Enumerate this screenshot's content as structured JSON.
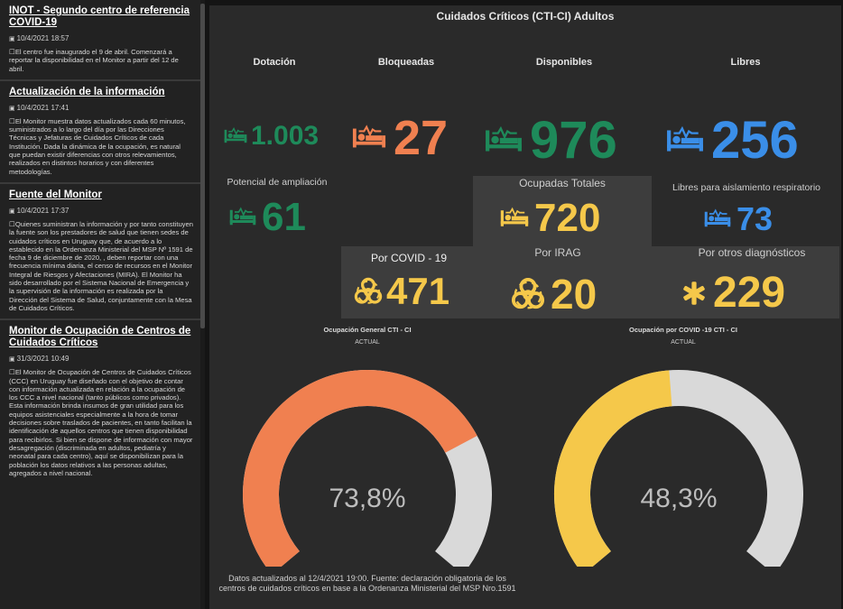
{
  "sidebar": {
    "posts": [
      {
        "title": "INOT - Segundo centro de referencia COVID-19",
        "date": "10/4/2021 18:57",
        "body": "El centro fue inaugurado el 9 de abril. Comenzará a reportar la disponibilidad en el Monitor a partir del 12 de abril."
      },
      {
        "title": "Actualización de la información",
        "date": "10/4/2021 17:41",
        "body": "El Monitor muestra datos actualizados cada 60 minutos, suministrados a lo largo del día por las Direcciones Técnicas y Jefaturas de Cuidados Críticos de cada Institución. Dada la dinámica de la ocupación, es natural que puedan existir diferencias con otros relevamientos, realizados en distintos horarios y con diferentes metodologías."
      },
      {
        "title": "Fuente del Monitor",
        "date": "10/4/2021 17:37",
        "body": "Quienes suministran la información y por tanto constituyen la fuente son los prestadores de salud que tienen sedes de cuidados críticos en Uruguay que, de acuerdo a lo establecido en la Ordenanza Ministerial del MSP Nº 1591 de fecha 9 de diciembre de 2020, , deben reportar con una frecuencia mínima diaria, el censo de recursos en el Monitor Integral de Riesgos y Afectaciones (MIRA). El Monitor ha sido desarrollado por el Sistema Nacional de Emergencia y la supervisión de la información es realizada por la Dirección del Sistema de Salud, conjuntamente con la Mesa de Cuidados Críticos."
      },
      {
        "title": "Monitor de Ocupación de Centros de Cuidados Críticos",
        "date": "31/3/2021 10:49",
        "body": "El Monitor de Ocupación de Centros de Cuidados Críticos (CCC) en Uruguay fue diseñado con el objetivo de contar con información actualizada en relación a la ocupación de los CCC a nivel nacional (tanto públicos como privados). Esta información brinda insumos de gran utilidad para los equipos asistenciales especialmente a la hora de tomar decisiones sobre traslados de pacientes, en tanto facilitan la identificación de aquellos centros que tienen disponibilidad para recibirlos. Si bien se dispone de información con mayor desagregación (discriminada en adultos, pediatría y neonatal para cada centro), aquí se disponibilizan para la población los datos relativos a las personas adultas, agregados a nivel nacional."
      }
    ]
  },
  "panel": {
    "title": "Cuidados Críticos (CTI-CI) Adultos",
    "dotacion": {
      "label": "Dotación",
      "value": "1.003"
    },
    "bloqueadas": {
      "label": "Bloqueadas",
      "value": "27"
    },
    "disponibles": {
      "label": "Disponibles",
      "value": "976"
    },
    "libres": {
      "label": "Libres",
      "value": "256"
    },
    "ampliacion": {
      "label": "Potencial de ampliación",
      "value": "61"
    },
    "ocupadas": {
      "label": "Ocupadas Totales",
      "value": "720"
    },
    "aislamiento": {
      "label": "Libres para aislamiento respiratorio",
      "value": "73"
    },
    "covid": {
      "label": "Por COVID - 19",
      "value": "471"
    },
    "irag": {
      "label": "Por IRAG",
      "value": "20"
    },
    "otros": {
      "label": "Por otros diagnósticos",
      "value": "229"
    },
    "gauge1": {
      "title": "Ocupación General CTI - CI",
      "sub": "ACTUAL",
      "value_text": "73,8%",
      "fraction": 0.738
    },
    "gauge2": {
      "title": "Ocupación por COVID -19 CTI - CI",
      "sub": "ACTUAL",
      "value_text": "48,3%",
      "fraction": 0.483
    },
    "footnote": "Datos actualizados al 12/4/2021 19:00. Fuente: declaración obligatoria de los centros de cuidados críticos en base a la Ordenanza Ministerial del MSP Nro.1591"
  },
  "colors": {
    "green": "#1e8a5a",
    "orange": "#f08050",
    "blue": "#3a8ee8",
    "yellow": "#f5c84a",
    "gray": "#d9d9d9",
    "track": "#d9d9d9"
  }
}
